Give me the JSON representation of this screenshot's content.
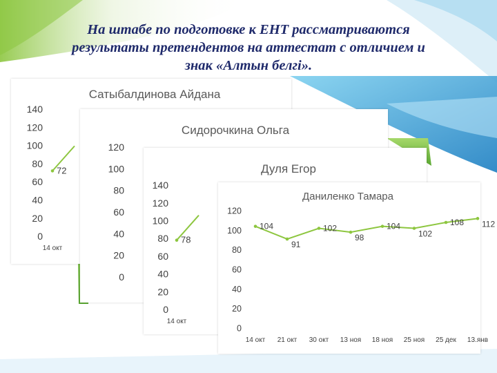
{
  "slide": {
    "title_lines": [
      "На штабе по подготовке к ЕНТ рассматриваются",
      "результаты  претендентов на аттестат с отличием и",
      "знак «Алтын белгі»."
    ],
    "accent_green": "#8cc63f",
    "accent_blue": "#2e9ed6",
    "line_color": "#8dc63f"
  },
  "chart_data": [
    {
      "type": "line",
      "title": "Сатыбалдинова Айдана",
      "categories": [
        "14 окт"
      ],
      "values": [
        72
      ],
      "yticks": [
        0,
        20,
        40,
        60,
        80,
        100,
        120,
        140
      ],
      "ylim": [
        0,
        140
      ]
    },
    {
      "type": "line",
      "title": "Сидорочкина Ольга",
      "categories": [],
      "values": [],
      "yticks": [
        0,
        20,
        40,
        60,
        80,
        100,
        120
      ],
      "ylim": [
        0,
        120
      ]
    },
    {
      "type": "line",
      "title": "Дуля Егор",
      "categories": [
        "14 окт"
      ],
      "values": [
        78
      ],
      "yticks": [
        0,
        20,
        40,
        60,
        80,
        100,
        120,
        140
      ],
      "ylim": [
        0,
        140
      ]
    },
    {
      "type": "line",
      "title": "Даниленко Тамара",
      "categories": [
        "14 окт",
        "21 окт",
        "30 окт",
        "13 ноя",
        "18 ноя",
        "25 ноя",
        "25 дек",
        "13.янв"
      ],
      "values": [
        104,
        91,
        102,
        98,
        104,
        102,
        108,
        112
      ],
      "yticks": [
        0,
        20,
        40,
        60,
        80,
        100,
        120
      ],
      "ylim": [
        0,
        120
      ]
    }
  ]
}
